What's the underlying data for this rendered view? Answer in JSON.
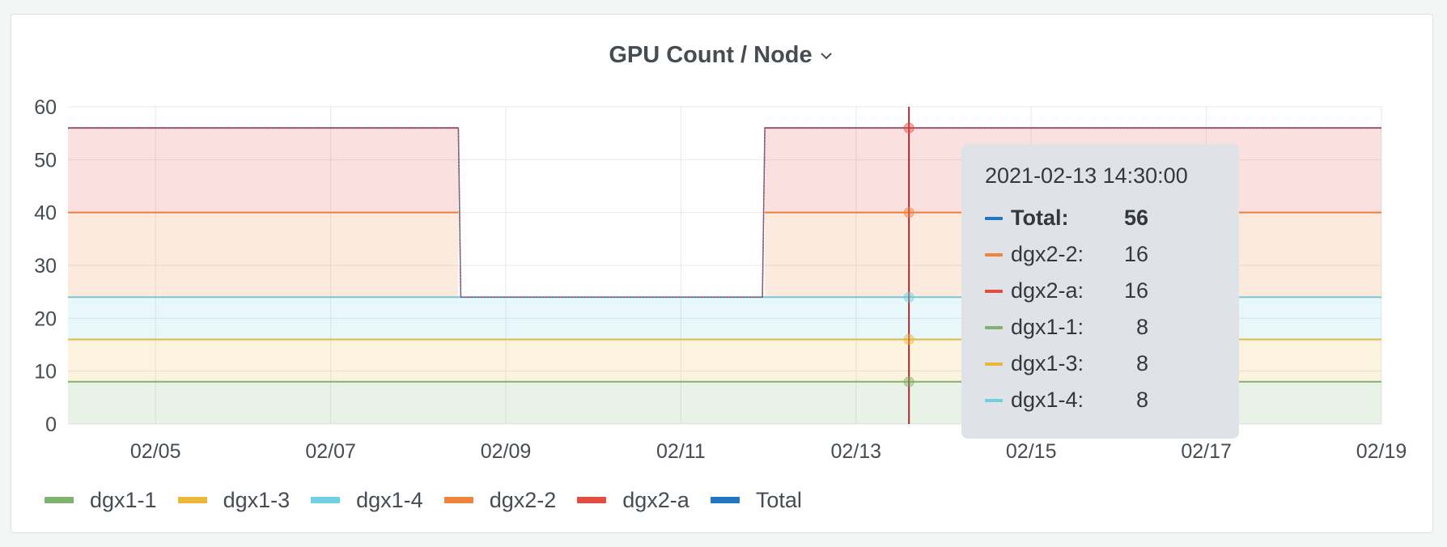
{
  "panel": {
    "title": "GPU Count / Node"
  },
  "colors": {
    "dgx1-1": "#7eb26d",
    "dgx1-3": "#eab839",
    "dgx1-4": "#6ed0e0",
    "dgx2-2": "#ef843c",
    "dgx2-a": "#e24d42",
    "Total": "#1f78c1",
    "grid": "#e6e8ea",
    "cursor": "#a0302b"
  },
  "tooltip": {
    "time": "2021-02-13 14:30:00",
    "rows": [
      {
        "name": "Total:",
        "value": "56",
        "series": "Total",
        "bold": true
      },
      {
        "name": "dgx2-2:",
        "value": "16",
        "series": "dgx2-2",
        "bold": false
      },
      {
        "name": "dgx2-a:",
        "value": "16",
        "series": "dgx2-a",
        "bold": false
      },
      {
        "name": "dgx1-1:",
        "value": "8",
        "series": "dgx1-1",
        "bold": false
      },
      {
        "name": "dgx1-3:",
        "value": "8",
        "series": "dgx1-3",
        "bold": false
      },
      {
        "name": "dgx1-4:",
        "value": "8",
        "series": "dgx1-4",
        "bold": false
      }
    ]
  },
  "chart_data": {
    "type": "area",
    "title": "GPU Count / Node",
    "stacked": true,
    "ylim": [
      0,
      60
    ],
    "yticks": [
      0,
      10,
      20,
      30,
      40,
      50,
      60
    ],
    "xlim": [
      "2021-02-04 00:00",
      "2021-02-19 00:00"
    ],
    "xticks": [
      "02/05",
      "02/07",
      "02/09",
      "02/11",
      "02/13",
      "02/15",
      "02/17",
      "02/19"
    ],
    "xtick_dates": [
      "2021-02-05",
      "2021-02-07",
      "2021-02-09",
      "2021-02-11",
      "2021-02-13",
      "2021-02-15",
      "2021-02-17",
      "2021-02-19"
    ],
    "grid": true,
    "legend_position": "bottom-left",
    "cursor_time": "2021-02-13 14:30:00",
    "gap": {
      "start": "2021-02-08 11:00",
      "end": "2021-02-11 23:00"
    },
    "series": [
      {
        "name": "dgx1-1",
        "value": 8,
        "present_in_gap": true
      },
      {
        "name": "dgx1-3",
        "value": 8,
        "present_in_gap": true
      },
      {
        "name": "dgx1-4",
        "value": 8,
        "present_in_gap": true
      },
      {
        "name": "dgx2-2",
        "value": 16,
        "present_in_gap": false
      },
      {
        "name": "dgx2-a",
        "value": 16,
        "present_in_gap": false
      },
      {
        "name": "Total",
        "before": 56,
        "during_gap": 24,
        "after": 56
      }
    ]
  }
}
